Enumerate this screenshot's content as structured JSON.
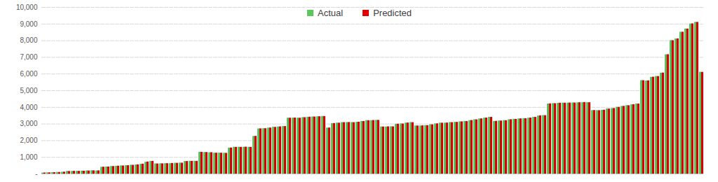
{
  "chart_data": {
    "type": "bar",
    "categories": [
      null,
      null,
      null,
      null,
      null,
      null,
      null,
      null,
      null,
      null,
      null,
      null,
      null,
      null,
      null,
      null,
      null,
      null,
      null,
      null,
      null,
      null,
      null,
      null,
      null,
      null,
      null,
      null,
      null,
      null,
      null,
      null,
      null,
      null,
      null,
      null,
      null,
      null,
      null,
      null,
      null,
      null,
      null,
      null,
      null,
      null,
      null,
      null,
      null,
      null,
      null,
      null,
      null,
      null,
      null,
      null,
      null,
      null,
      null,
      null,
      null,
      null,
      null,
      null,
      null,
      null,
      null,
      null,
      null,
      null,
      null,
      null,
      null,
      null,
      null,
      null,
      null,
      null,
      null,
      null,
      null,
      null,
      null,
      null,
      null,
      null,
      null,
      null,
      null,
      null,
      null,
      null,
      null,
      null,
      null,
      null,
      null,
      null,
      null,
      null,
      null,
      null,
      null,
      null,
      null,
      null,
      null,
      null,
      null,
      null,
      null,
      null,
      null,
      null,
      null,
      null,
      null,
      null,
      null,
      null,
      null,
      null,
      null,
      null,
      null,
      null,
      null,
      null,
      null,
      null,
      null,
      null,
      null,
      null,
      null
    ],
    "series": [
      {
        "name": "Actual",
        "color": "#5cc85c",
        "values": [
          50,
          70,
          80,
          90,
          100,
          150,
          150,
          160,
          170,
          180,
          190,
          180,
          400,
          420,
          450,
          460,
          480,
          500,
          520,
          540,
          580,
          700,
          750,
          600,
          610,
          620,
          620,
          640,
          650,
          750,
          760,
          760,
          1300,
          1290,
          1270,
          1250,
          1250,
          1240,
          1550,
          1600,
          1600,
          1600,
          1600,
          2250,
          2700,
          2720,
          2750,
          2800,
          2820,
          2850,
          3350,
          3350,
          3350,
          3380,
          3400,
          3420,
          3430,
          3450,
          2750,
          3020,
          3050,
          3080,
          3080,
          3080,
          3100,
          3150,
          3200,
          3200,
          3220,
          2820,
          2820,
          2830,
          2980,
          3000,
          3050,
          3080,
          2880,
          2880,
          2900,
          2950,
          3000,
          3050,
          3050,
          3080,
          3100,
          3120,
          3150,
          3200,
          3250,
          3300,
          3350,
          3400,
          3150,
          3180,
          3200,
          3250,
          3280,
          3300,
          3320,
          3350,
          3400,
          3480,
          3500,
          4200,
          4220,
          4240,
          4250,
          4250,
          4260,
          4270,
          4280,
          4280,
          3800,
          3800,
          3820,
          3900,
          3920,
          4000,
          4050,
          4100,
          4150,
          4200,
          5600,
          5580,
          5800,
          5850,
          6050,
          7150,
          8000,
          8100,
          8500,
          8700,
          9000,
          9100,
          6100
        ]
      },
      {
        "name": "Predicted",
        "color": "#e00000",
        "values": [
          60,
          70,
          80,
          90,
          110,
          150,
          160,
          160,
          170,
          180,
          190,
          190,
          410,
          420,
          450,
          470,
          480,
          500,
          520,
          550,
          590,
          720,
          760,
          600,
          610,
          620,
          630,
          640,
          650,
          750,
          760,
          760,
          1300,
          1290,
          1280,
          1250,
          1250,
          1240,
          1560,
          1600,
          1600,
          1610,
          1600,
          2260,
          2710,
          2720,
          2760,
          2800,
          2830,
          2850,
          3350,
          3360,
          3350,
          3380,
          3410,
          3420,
          3440,
          3450,
          2760,
          3030,
          3050,
          3080,
          3090,
          3080,
          3110,
          3150,
          3200,
          3210,
          3220,
          2820,
          2830,
          2830,
          2990,
          3000,
          3060,
          3080,
          2880,
          2890,
          2900,
          2950,
          3010,
          3050,
          3060,
          3080,
          3100,
          3130,
          3150,
          3210,
          3250,
          3310,
          3360,
          3400,
          3160,
          3180,
          3200,
          3260,
          3280,
          3310,
          3320,
          3360,
          3400,
          3490,
          3500,
          4210,
          4220,
          4250,
          4250,
          4260,
          4260,
          4280,
          4290,
          4280,
          3810,
          3800,
          3830,
          3900,
          3930,
          4000,
          4060,
          4100,
          4160,
          4200,
          5600,
          5590,
          5810,
          5850,
          6060,
          7160,
          8000,
          8110,
          8510,
          8700,
          9010,
          9100,
          6100
        ]
      }
    ],
    "ylim": [
      0,
      10000
    ],
    "yticks": [
      {
        "value": 0,
        "label": "-"
      },
      {
        "value": 1000,
        "label": "1,000"
      },
      {
        "value": 2000,
        "label": "2,000"
      },
      {
        "value": 3000,
        "label": "3,000"
      },
      {
        "value": 4000,
        "label": "4,000"
      },
      {
        "value": 5000,
        "label": "5,000"
      },
      {
        "value": 6000,
        "label": "6,000"
      },
      {
        "value": 7000,
        "label": "7,000"
      },
      {
        "value": 8000,
        "label": "8,000"
      },
      {
        "value": 9000,
        "label": "9,000"
      },
      {
        "value": 10000,
        "label": "10,000"
      }
    ],
    "grid": true,
    "legend": "top"
  }
}
